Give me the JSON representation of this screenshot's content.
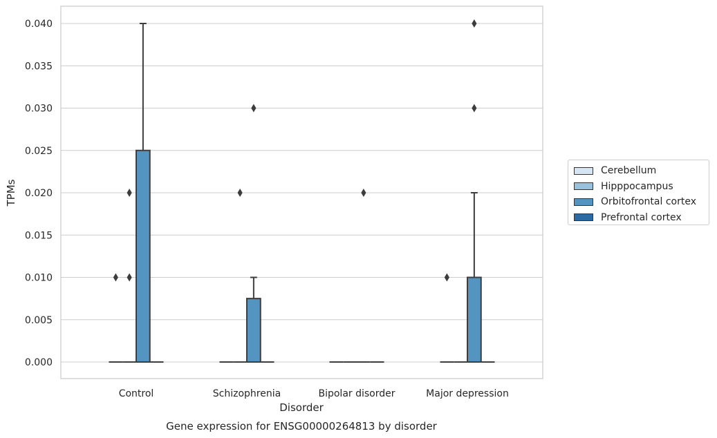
{
  "chart_data": {
    "type": "box",
    "title": "Gene expression for ENSG00000264813 by disorder",
    "xlabel": "Disorder",
    "ylabel": "TPMs",
    "ylim": [
      -0.002,
      0.0418
    ],
    "yticks": [
      "0.000",
      "0.005",
      "0.010",
      "0.015",
      "0.020",
      "0.025",
      "0.030",
      "0.035",
      "0.040"
    ],
    "grid": true,
    "legend_position": "right",
    "categories": [
      "Control",
      "Schizophrenia",
      "Bipolar disorder",
      "Major depression"
    ],
    "series": [
      {
        "name": "Cerebellum",
        "color": "#d5e5f3",
        "boxes": [
          {
            "q1": 0,
            "median": 0,
            "q3": 0,
            "whisker_low": 0,
            "whisker_high": 0,
            "outliers": [
              0.01
            ]
          },
          {
            "q1": 0,
            "median": 0,
            "q3": 0,
            "whisker_low": 0,
            "whisker_high": 0,
            "outliers": []
          },
          {
            "q1": 0,
            "median": 0,
            "q3": 0,
            "whisker_low": 0,
            "whisker_high": 0,
            "outliers": []
          },
          {
            "q1": 0,
            "median": 0,
            "q3": 0,
            "whisker_low": 0,
            "whisker_high": 0,
            "outliers": [
              0.01
            ]
          }
        ]
      },
      {
        "name": "Hipppocampus",
        "color": "#98c1de",
        "boxes": [
          {
            "q1": 0,
            "median": 0,
            "q3": 0,
            "whisker_low": 0,
            "whisker_high": 0,
            "outliers": [
              0.01,
              0.02
            ]
          },
          {
            "q1": 0,
            "median": 0,
            "q3": 0,
            "whisker_low": 0,
            "whisker_high": 0,
            "outliers": [
              0.02
            ]
          },
          {
            "q1": 0,
            "median": 0,
            "q3": 0,
            "whisker_low": 0,
            "whisker_high": 0,
            "outliers": []
          },
          {
            "q1": 0,
            "median": 0,
            "q3": 0,
            "whisker_low": 0,
            "whisker_high": 0,
            "outliers": []
          }
        ]
      },
      {
        "name": "Orbitofrontal cortex",
        "color": "#5494c1",
        "boxes": [
          {
            "q1": 0,
            "median": 0,
            "q3": 0.025,
            "whisker_low": 0,
            "whisker_high": 0.04,
            "outliers": []
          },
          {
            "q1": 0,
            "median": 0,
            "q3": 0.0075,
            "whisker_low": 0,
            "whisker_high": 0.01,
            "outliers": [
              0.03
            ]
          },
          {
            "q1": 0,
            "median": 0,
            "q3": 0,
            "whisker_low": 0,
            "whisker_high": 0,
            "outliers": [
              0.02
            ]
          },
          {
            "q1": 0,
            "median": 0,
            "q3": 0.01,
            "whisker_low": 0,
            "whisker_high": 0.02,
            "outliers": [
              0.03,
              0.04
            ]
          }
        ]
      },
      {
        "name": "Prefrontal cortex",
        "color": "#2b6aa3",
        "boxes": [
          {
            "q1": 0,
            "median": 0,
            "q3": 0,
            "whisker_low": 0,
            "whisker_high": 0,
            "outliers": []
          },
          {
            "q1": 0,
            "median": 0,
            "q3": 0,
            "whisker_low": 0,
            "whisker_high": 0,
            "outliers": []
          },
          {
            "q1": 0,
            "median": 0,
            "q3": 0,
            "whisker_low": 0,
            "whisker_high": 0,
            "outliers": []
          },
          {
            "q1": 0,
            "median": 0,
            "q3": 0,
            "whisker_low": 0,
            "whisker_high": 0,
            "outliers": []
          }
        ]
      }
    ]
  }
}
